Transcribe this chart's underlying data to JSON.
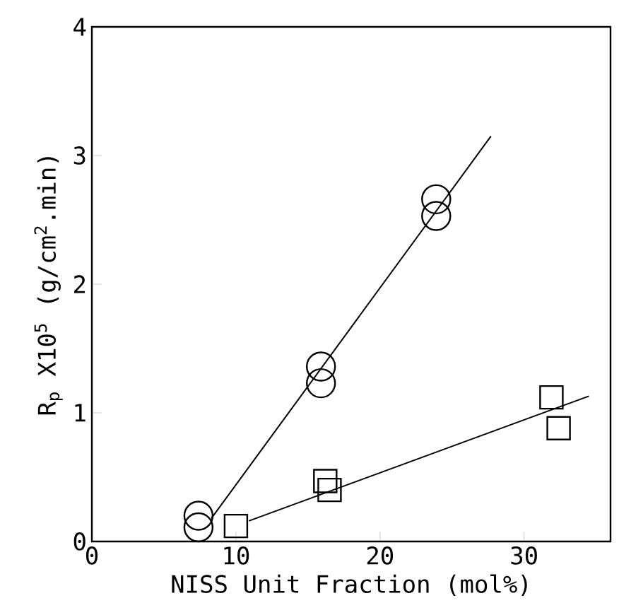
{
  "chart_data": {
    "type": "scatter",
    "xlabel": "NISS Unit Fraction (mol%)",
    "ylabel": "R$_{p}$ X10$^{5}$ (g/cm$^{2}$.min)",
    "xlim": [
      0,
      36
    ],
    "ylim": [
      0,
      4
    ],
    "xticks": [
      0,
      10,
      20,
      30
    ],
    "yticks": [
      0,
      1,
      2,
      3,
      4
    ],
    "grid": false,
    "series": [
      {
        "type": "line",
        "marker": "none",
        "color": "#000000",
        "x": [
          8.3,
          27.7
        ],
        "values": [
          0.18,
          3.15
        ]
      },
      {
        "type": "line",
        "marker": "none",
        "color": "#000000",
        "x": [
          10.9,
          34.5
        ],
        "values": [
          0.16,
          1.13
        ]
      },
      {
        "marker": "circle",
        "color": "#000000",
        "x": [
          7.4,
          7.4,
          15.9,
          15.9,
          23.9,
          23.9
        ],
        "values": [
          0.2,
          0.11,
          1.36,
          1.23,
          2.66,
          2.53
        ]
      },
      {
        "marker": "square",
        "color": "#000000",
        "x": [
          10.0,
          16.2,
          16.5,
          31.9,
          32.4
        ],
        "values": [
          0.12,
          0.47,
          0.4,
          1.12,
          0.88
        ]
      }
    ]
  }
}
